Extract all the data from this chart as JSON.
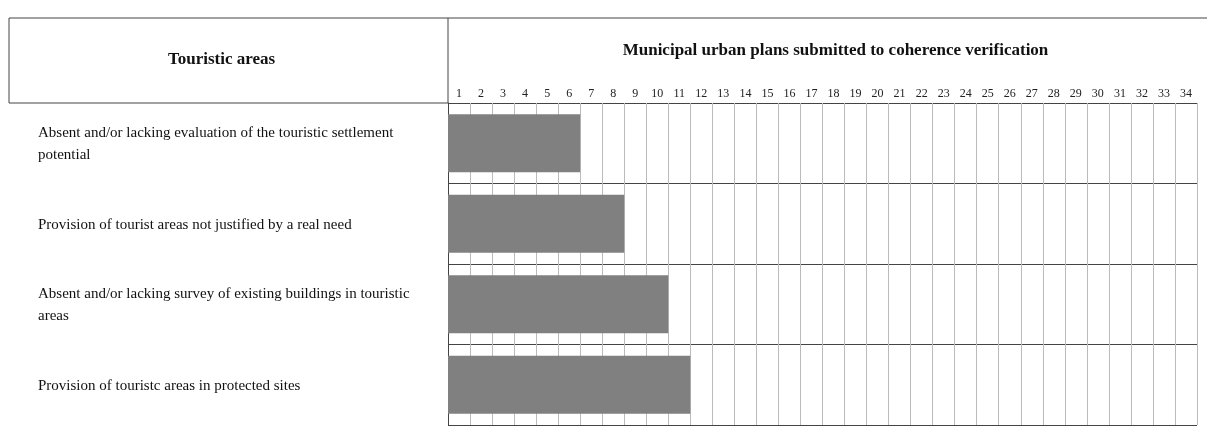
{
  "chart_data": {
    "type": "bar",
    "orientation": "horizontal",
    "title": "Municipal urban plans submitted to coherence verification",
    "ylabel": "Touristic areas",
    "categories": [
      "Absent and/or lacking evaluation of the touristic settlement potential",
      "Provision of tourist areas not justified by a real need",
      "Absent and/or lacking survey of existing buildings in touristic areas",
      "Provision of touristc areas in protected sites"
    ],
    "values": [
      6,
      8,
      10,
      11
    ],
    "color": "#808080",
    "xlim": [
      0,
      34
    ],
    "xticks": [
      {
        "value": 0.5,
        "label": "1"
      },
      {
        "value": 1.5,
        "label": "2"
      },
      {
        "value": 2.5,
        "label": "3"
      },
      {
        "value": 3.5,
        "label": "4"
      },
      {
        "value": 4.5,
        "label": "5"
      },
      {
        "value": 5.5,
        "label": "6"
      },
      {
        "value": 6.5,
        "label": "7"
      },
      {
        "value": 7.5,
        "label": "8"
      },
      {
        "value": 8.5,
        "label": "9"
      },
      {
        "value": 9.5,
        "label": "10"
      },
      {
        "value": 10.5,
        "label": "11"
      },
      {
        "value": 11.5,
        "label": "12"
      },
      {
        "value": 12.5,
        "label": "13"
      },
      {
        "value": 13.5,
        "label": "14"
      },
      {
        "value": 14.5,
        "label": "15"
      },
      {
        "value": 15.5,
        "label": "16"
      },
      {
        "value": 16.5,
        "label": "17"
      },
      {
        "value": 17.5,
        "label": "18"
      },
      {
        "value": 18.5,
        "label": "19"
      },
      {
        "value": 19.5,
        "label": "20"
      },
      {
        "value": 20.5,
        "label": "21"
      },
      {
        "value": 21.5,
        "label": "22"
      },
      {
        "value": 22.5,
        "label": "23"
      },
      {
        "value": 23.5,
        "label": "24"
      },
      {
        "value": 24.5,
        "label": "25"
      },
      {
        "value": 25.5,
        "label": "26"
      },
      {
        "value": 26.5,
        "label": "27"
      },
      {
        "value": 27.5,
        "label": "28"
      },
      {
        "value": 28.5,
        "label": "29"
      },
      {
        "value": 29.5,
        "label": "30"
      },
      {
        "value": 30.5,
        "label": "31"
      },
      {
        "value": 31.5,
        "label": "32"
      },
      {
        "value": 32.5,
        "label": "33"
      },
      {
        "value": 33.5,
        "label": "34"
      }
    ],
    "grid": true
  }
}
